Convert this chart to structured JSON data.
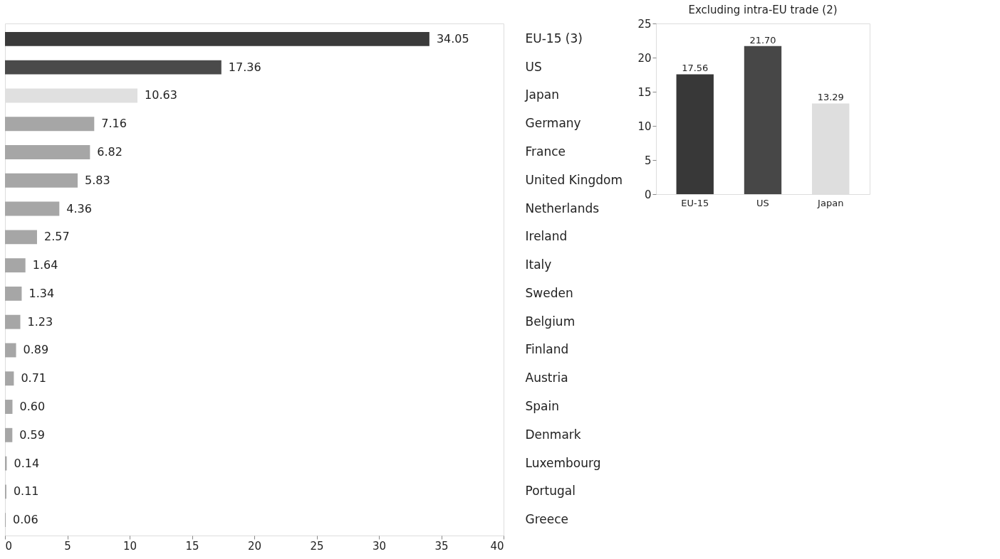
{
  "chart_data": [
    {
      "type": "bar",
      "orientation": "horizontal",
      "categories": [
        "EU-15 (3)",
        "US",
        "Japan",
        "Germany",
        "France",
        "United Kingdom",
        "Netherlands",
        "Ireland",
        "Italy",
        "Sweden",
        "Belgium",
        "Finland",
        "Austria",
        "Spain",
        "Denmark",
        "Luxembourg",
        "Portugal",
        "Greece"
      ],
      "values": [
        34.05,
        17.36,
        10.63,
        7.16,
        6.82,
        5.83,
        4.36,
        2.57,
        1.64,
        1.34,
        1.23,
        0.89,
        0.71,
        0.6,
        0.59,
        0.14,
        0.11,
        0.06
      ],
      "colors": [
        "#3a3a3a",
        "#4a4a4a",
        "#e0e0e0",
        "#a6a6a6",
        "#a6a6a6",
        "#a6a6a6",
        "#a6a6a6",
        "#a6a6a6",
        "#a6a6a6",
        "#a6a6a6",
        "#a6a6a6",
        "#a6a6a6",
        "#a6a6a6",
        "#a6a6a6",
        "#a6a6a6",
        "#a6a6a6",
        "#a6a6a6",
        "#a6a6a6"
      ],
      "value_labels": [
        "34.05",
        "17.36",
        "10.63",
        "7.16",
        "6.82",
        "5.83",
        "4.36",
        "2.57",
        "1.64",
        "1.34",
        "1.23",
        "0.89",
        "0.71",
        "0.60",
        "0.59",
        "0.14",
        "0.11",
        "0.06"
      ],
      "xlim": [
        0,
        40
      ],
      "xticks": [
        0,
        5,
        10,
        15,
        20,
        25,
        30,
        35,
        40
      ],
      "grid": false
    },
    {
      "type": "bar",
      "title": "Excluding intra-EU trade (2)",
      "categories": [
        "EU-15",
        "US",
        "Japan"
      ],
      "values": [
        17.56,
        21.7,
        13.29
      ],
      "value_labels": [
        "17.56",
        "21.70",
        "13.29"
      ],
      "colors": [
        "#383838",
        "#474747",
        "#dedede"
      ],
      "ylim": [
        0,
        25
      ],
      "yticks": [
        0,
        5,
        10,
        15,
        20,
        25
      ],
      "grid": false
    }
  ]
}
